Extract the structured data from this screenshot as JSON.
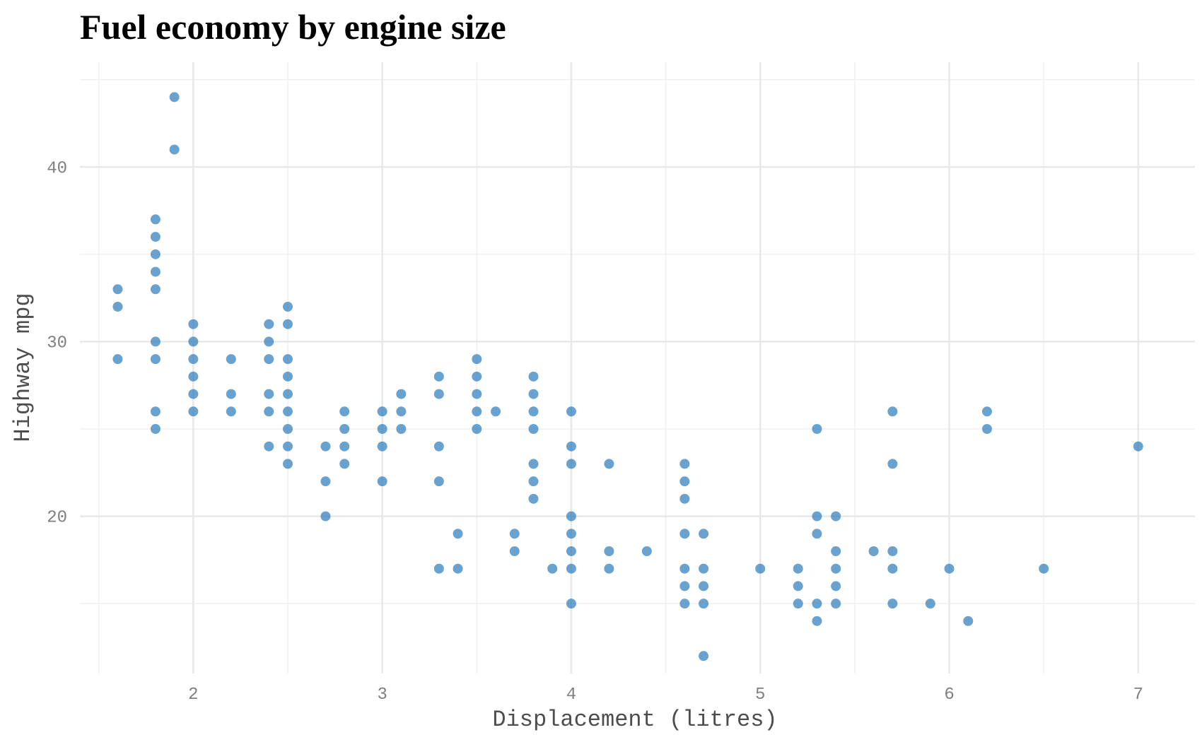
{
  "chart_data": {
    "type": "scatter",
    "title": "Fuel economy by engine size",
    "xlabel": "Displacement (litres)",
    "ylabel": "Highway mpg",
    "xlim": [
      1.4,
      7.3
    ],
    "ylim": [
      11,
      46
    ],
    "x_ticks": [
      2,
      3,
      4,
      5,
      6,
      7
    ],
    "y_ticks": [
      20,
      30,
      40
    ],
    "grid": true,
    "point_color": "#2b7bba",
    "points": [
      [
        1.6,
        33
      ],
      [
        1.6,
        32
      ],
      [
        1.6,
        29
      ],
      [
        1.8,
        37
      ],
      [
        1.8,
        36
      ],
      [
        1.8,
        35
      ],
      [
        1.8,
        34
      ],
      [
        1.8,
        33
      ],
      [
        1.8,
        30
      ],
      [
        1.8,
        29
      ],
      [
        1.8,
        26
      ],
      [
        1.8,
        25
      ],
      [
        1.9,
        44
      ],
      [
        1.9,
        41
      ],
      [
        2.0,
        31
      ],
      [
        2.0,
        30
      ],
      [
        2.0,
        29
      ],
      [
        2.0,
        28
      ],
      [
        2.0,
        27
      ],
      [
        2.0,
        26
      ],
      [
        2.2,
        29
      ],
      [
        2.2,
        27
      ],
      [
        2.2,
        26
      ],
      [
        2.4,
        31
      ],
      [
        2.4,
        30
      ],
      [
        2.4,
        29
      ],
      [
        2.4,
        27
      ],
      [
        2.4,
        26
      ],
      [
        2.4,
        24
      ],
      [
        2.5,
        32
      ],
      [
        2.5,
        31
      ],
      [
        2.5,
        29
      ],
      [
        2.5,
        28
      ],
      [
        2.5,
        27
      ],
      [
        2.5,
        26
      ],
      [
        2.5,
        25
      ],
      [
        2.5,
        24
      ],
      [
        2.5,
        23
      ],
      [
        2.7,
        24
      ],
      [
        2.7,
        22
      ],
      [
        2.7,
        20
      ],
      [
        2.8,
        26
      ],
      [
        2.8,
        25
      ],
      [
        2.8,
        24
      ],
      [
        2.8,
        23
      ],
      [
        3.0,
        26
      ],
      [
        3.0,
        25
      ],
      [
        3.0,
        24
      ],
      [
        3.0,
        22
      ],
      [
        3.1,
        27
      ],
      [
        3.1,
        26
      ],
      [
        3.1,
        25
      ],
      [
        3.3,
        28
      ],
      [
        3.3,
        27
      ],
      [
        3.3,
        24
      ],
      [
        3.3,
        22
      ],
      [
        3.3,
        17
      ],
      [
        3.4,
        19
      ],
      [
        3.4,
        17
      ],
      [
        3.5,
        29
      ],
      [
        3.5,
        28
      ],
      [
        3.5,
        27
      ],
      [
        3.5,
        26
      ],
      [
        3.5,
        25
      ],
      [
        3.6,
        26
      ],
      [
        3.7,
        19
      ],
      [
        3.7,
        18
      ],
      [
        3.8,
        28
      ],
      [
        3.8,
        27
      ],
      [
        3.8,
        26
      ],
      [
        3.8,
        25
      ],
      [
        3.8,
        23
      ],
      [
        3.8,
        22
      ],
      [
        3.8,
        21
      ],
      [
        3.9,
        17
      ],
      [
        4.0,
        26
      ],
      [
        4.0,
        24
      ],
      [
        4.0,
        23
      ],
      [
        4.0,
        20
      ],
      [
        4.0,
        19
      ],
      [
        4.0,
        18
      ],
      [
        4.0,
        17
      ],
      [
        4.0,
        15
      ],
      [
        4.2,
        23
      ],
      [
        4.2,
        18
      ],
      [
        4.2,
        17
      ],
      [
        4.4,
        18
      ],
      [
        4.6,
        23
      ],
      [
        4.6,
        22
      ],
      [
        4.6,
        21
      ],
      [
        4.6,
        19
      ],
      [
        4.6,
        17
      ],
      [
        4.6,
        16
      ],
      [
        4.6,
        15
      ],
      [
        4.7,
        19
      ],
      [
        4.7,
        17
      ],
      [
        4.7,
        16
      ],
      [
        4.7,
        15
      ],
      [
        4.7,
        12
      ],
      [
        5.0,
        17
      ],
      [
        5.2,
        17
      ],
      [
        5.2,
        16
      ],
      [
        5.2,
        15
      ],
      [
        5.3,
        25
      ],
      [
        5.3,
        20
      ],
      [
        5.3,
        19
      ],
      [
        5.3,
        15
      ],
      [
        5.3,
        14
      ],
      [
        5.4,
        20
      ],
      [
        5.4,
        18
      ],
      [
        5.4,
        17
      ],
      [
        5.4,
        16
      ],
      [
        5.4,
        15
      ],
      [
        5.6,
        18
      ],
      [
        5.7,
        26
      ],
      [
        5.7,
        23
      ],
      [
        5.7,
        18
      ],
      [
        5.7,
        17
      ],
      [
        5.7,
        15
      ],
      [
        5.9,
        15
      ],
      [
        6.0,
        17
      ],
      [
        6.1,
        14
      ],
      [
        6.2,
        26
      ],
      [
        6.2,
        25
      ],
      [
        6.5,
        17
      ],
      [
        7.0,
        24
      ]
    ]
  }
}
